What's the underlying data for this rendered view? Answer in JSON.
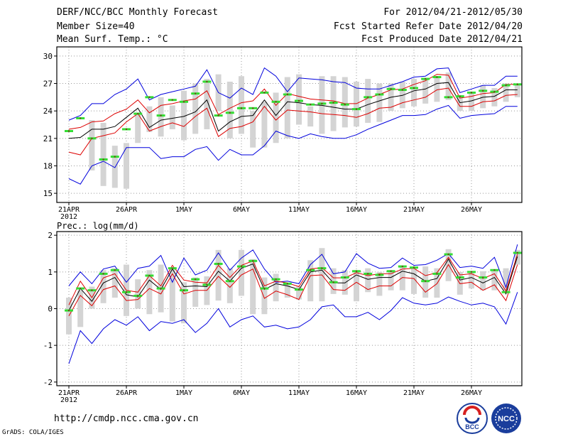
{
  "header": {
    "title": "DERF/NCC/BCC Monthly Forecast",
    "member_size": "Member Size=40",
    "variable": "Mean Surf. Temp.: °C",
    "period": "For 2012/04/21-2012/05/30",
    "refer_date": "Fcst Started Refer Date 2012/04/20",
    "produced_date": "Fcst Produced Date 2012/04/21"
  },
  "footer": {
    "url": "http://cmdp.ncc.cma.gov.cn",
    "credit": "GrADS: COLA/IGES",
    "logo_bcc_text": "BCC",
    "logo_ncc_text": "NCC"
  },
  "colors": {
    "max_min": "#0000dd",
    "percentile": "#dd0000",
    "mean": "#000000",
    "box": "#d4d4d4",
    "obs": "#33dd33"
  },
  "chart_data": [
    {
      "type": "line",
      "title": "Mean Surf. Temp.: °C",
      "ylim": [
        14,
        31
      ],
      "yticks": [
        15,
        18,
        21,
        24,
        27,
        30
      ],
      "ytick_labels": [
        "15",
        "18",
        "21",
        "24",
        "27",
        "30"
      ],
      "xticks": [
        0,
        5,
        10,
        15,
        20,
        25,
        30,
        35
      ],
      "xtick_labels": [
        "21APR",
        "26APR",
        "1MAY",
        "6MAY",
        "11MAY",
        "16MAY",
        "21MAY",
        "26MAY"
      ],
      "year_label": "2012",
      "days": 40,
      "series": [
        {
          "name": "max",
          "values": [
            23,
            23.5,
            24.8,
            24.8,
            25.8,
            26.4,
            27.5,
            25.2,
            25.8,
            26.1,
            26.4,
            26.7,
            28.5,
            26,
            25.4,
            26.5,
            25.8,
            28.7,
            27.8,
            26.1,
            27.6,
            27.5,
            27.4,
            27.2,
            27.1,
            26.5,
            26.4,
            26.4,
            26.8,
            27.2,
            27.7,
            27.8,
            28.6,
            28.7,
            26,
            26.4,
            26.8,
            26.8,
            27.8,
            27.8
          ]
        },
        {
          "name": "p90",
          "values": [
            22,
            22.2,
            22.8,
            22.9,
            23.7,
            24.2,
            25.2,
            23.8,
            24.6,
            24.8,
            25.1,
            25.3,
            26.2,
            23.6,
            24.3,
            24.9,
            25.1,
            26.4,
            24.6,
            25.9,
            25.6,
            25.3,
            25.2,
            25.1,
            24.8,
            24.8,
            25.4,
            25.8,
            26.3,
            26.4,
            26.9,
            27.3,
            28,
            27.9,
            25.4,
            25.6,
            25.9,
            26,
            26.9,
            26.9
          ]
        },
        {
          "name": "mean",
          "values": [
            21,
            21.1,
            22,
            22,
            22.3,
            23.3,
            24.3,
            22.2,
            23,
            23.2,
            23.4,
            23.9,
            25.2,
            21.8,
            22.8,
            23.4,
            23.5,
            25.2,
            23.5,
            25,
            24.9,
            24.7,
            24.6,
            24.4,
            24.2,
            24.2,
            24.7,
            25.1,
            25.5,
            25.7,
            26.2,
            26.4,
            27,
            27.1,
            24.9,
            25.1,
            25.5,
            25.6,
            26.3,
            26.3
          ]
        },
        {
          "name": "p10",
          "values": [
            19.5,
            19.2,
            21,
            21.3,
            21.6,
            22.8,
            23.7,
            21.8,
            22.3,
            22.7,
            22.3,
            23.4,
            24.3,
            21.2,
            22.1,
            22.3,
            22.8,
            24.5,
            23,
            24.1,
            24,
            23.9,
            23.7,
            23.6,
            23.5,
            23.3,
            23.7,
            24.3,
            24.4,
            24.9,
            25.2,
            25.5,
            26.3,
            26.5,
            24.5,
            24.5,
            25,
            25.1,
            25.7,
            25.8
          ]
        },
        {
          "name": "min",
          "values": [
            16.6,
            16,
            18,
            18.5,
            17.8,
            20,
            20,
            20,
            18.8,
            19,
            19,
            19.8,
            20.1,
            18.6,
            19.8,
            19.2,
            19.2,
            20.2,
            21.8,
            21.3,
            21,
            21.5,
            21.2,
            21,
            21,
            21.4,
            22,
            22.5,
            23,
            23.5,
            23.5,
            23.6,
            24.2,
            24.6,
            23.2,
            23.5,
            23.6,
            23.7,
            24.5,
            24.5
          ]
        }
      ],
      "boxes": [
        [
          null,
          null
        ],
        [
          null,
          null
        ],
        [
          17.5,
          23
        ],
        [
          15.8,
          22.7
        ],
        [
          15.6,
          20.2
        ],
        [
          15.5,
          20.5
        ],
        [
          20.5,
          23.8
        ],
        [
          21.7,
          24.5
        ],
        [
          21.2,
          25.5
        ],
        [
          22,
          24.6
        ],
        [
          20.8,
          26.2
        ],
        [
          21.5,
          27
        ],
        [
          22,
          27.5
        ],
        [
          24,
          28
        ],
        [
          21,
          27.2
        ],
        [
          21.5,
          27.8
        ],
        [
          20,
          24
        ],
        [
          20,
          25
        ],
        [
          20.5,
          26
        ],
        [
          21,
          27.7
        ],
        [
          22.5,
          28
        ],
        [
          22.3,
          24.5
        ],
        [
          21.5,
          27.8
        ],
        [
          21.8,
          27.8
        ],
        [
          22.2,
          27.7
        ],
        [
          22.3,
          27.2
        ],
        [
          22.7,
          27.5
        ],
        [
          22.8,
          27
        ],
        [
          24,
          27
        ],
        [
          24.3,
          27.2
        ],
        [
          24.5,
          27.5
        ],
        [
          24.8,
          27.5
        ],
        [
          25,
          27.7
        ],
        [
          25.2,
          28.2
        ],
        [
          24,
          25.6
        ],
        [
          24,
          26
        ],
        [
          24.3,
          26.8
        ],
        [
          24.5,
          26.5
        ],
        [
          25,
          27
        ],
        [
          25.5,
          27
        ]
      ],
      "obs": [
        21.8,
        23.2,
        21,
        18.7,
        19,
        22,
        23.7,
        25.5,
        23.5,
        25.2,
        25,
        25.9,
        27.2,
        23.5,
        23.8,
        24.3,
        24.3,
        26,
        25,
        25.8,
        25.1,
        24.7,
        24.8,
        24.9,
        24.7,
        24.2,
        25.5,
        25.8,
        26.4,
        26.3,
        26.5,
        27.5,
        27.7,
        25.5,
        25.6,
        26,
        26.2,
        26.1,
        26.8,
        26.9
      ]
    },
    {
      "type": "line",
      "title": "Prec.: log(mm/d)",
      "ylim": [
        -2.1,
        2.1
      ],
      "yticks": [
        -2,
        -1,
        0,
        1,
        2
      ],
      "ytick_labels": [
        "-2",
        "-1",
        "0",
        "1",
        "2"
      ],
      "xticks": [
        0,
        5,
        10,
        15,
        20,
        25,
        30,
        35
      ],
      "xtick_labels": [
        "21APR",
        "26APR",
        "1MAY",
        "6MAY",
        "11MAY",
        "16MAY",
        "21MAY",
        "26MAY"
      ],
      "year_label": "2012",
      "days": 40,
      "series": [
        {
          "name": "max",
          "values": [
            0.62,
            1,
            0.68,
            1.08,
            1.16,
            0.72,
            1.1,
            1.16,
            1.45,
            0.72,
            1.38,
            0.92,
            1.05,
            1.52,
            1.05,
            1.38,
            1.6,
            1.08,
            0.72,
            0.75,
            0.68,
            1.2,
            1.48,
            0.95,
            1,
            1.5,
            1.24,
            1.1,
            1.12,
            1.38,
            1.18,
            1.2,
            1.32,
            1.5,
            1.12,
            1.16,
            1.1,
            1.4,
            0.58,
            1.75
          ]
        },
        {
          "name": "p90",
          "values": [
            0.1,
            0.75,
            0.3,
            0.84,
            0.95,
            0.5,
            0.45,
            0.9,
            0.62,
            1.18,
            0.78,
            0.72,
            0.7,
            1.18,
            0.85,
            1.18,
            1.3,
            0.62,
            0.75,
            0.7,
            0.6,
            1.08,
            1.12,
            0.84,
            0.84,
            0.98,
            0.9,
            0.95,
            0.95,
            1.08,
            1.1,
            0.9,
            0.98,
            1.4,
            0.92,
            0.95,
            0.82,
            0.95,
            0.48,
            1.48
          ]
        },
        {
          "name": "mean",
          "values": [
            -0.05,
            0.55,
            0.2,
            0.7,
            0.85,
            0.38,
            0.32,
            0.78,
            0.52,
            1.08,
            0.6,
            0.62,
            0.6,
            1.02,
            0.75,
            1.1,
            1.22,
            0.52,
            0.68,
            0.62,
            0.52,
            1,
            1.05,
            0.7,
            0.7,
            0.92,
            0.8,
            0.85,
            0.85,
            1.02,
            0.95,
            0.75,
            0.82,
            1.35,
            0.78,
            0.85,
            0.7,
            0.85,
            0.4,
            1.42
          ]
        },
        {
          "name": "p10",
          "values": [
            -0.2,
            0.36,
            0.08,
            0.52,
            0.62,
            0.22,
            0.25,
            0.55,
            0.4,
            0.95,
            0.4,
            0.5,
            0.5,
            0.88,
            0.58,
            0.92,
            1.08,
            0.28,
            0.48,
            0.38,
            0.25,
            0.9,
            0.92,
            0.52,
            0.5,
            0.72,
            0.52,
            0.62,
            0.62,
            0.85,
            0.82,
            0.45,
            0.68,
            1.2,
            0.68,
            0.72,
            0.5,
            0.65,
            0.22,
            1.2
          ]
        },
        {
          "name": "min",
          "values": [
            -1.5,
            -0.6,
            -0.95,
            -0.55,
            -0.3,
            -0.45,
            -0.22,
            -0.6,
            -0.35,
            -0.4,
            -0.3,
            -0.65,
            -0.4,
            0,
            -0.5,
            -0.3,
            -0.2,
            -0.5,
            -0.45,
            -0.55,
            -0.5,
            -0.3,
            0.05,
            0.1,
            -0.22,
            -0.22,
            -0.1,
            -0.3,
            -0.05,
            0.3,
            0.15,
            0.1,
            0.15,
            0.32,
            0.2,
            0.1,
            0.15,
            0.05,
            -0.42,
            0.45
          ]
        }
      ],
      "boxes": [
        [
          -0.7,
          0.3
        ],
        [
          -0.5,
          0.5
        ],
        [
          0,
          0.6
        ],
        [
          0.15,
          1.05
        ],
        [
          0.3,
          1.1
        ],
        [
          -0.2,
          1.2
        ],
        [
          0,
          0.8
        ],
        [
          -0.15,
          1.05
        ],
        [
          -0.1,
          1.2
        ],
        [
          -0.35,
          1.1
        ],
        [
          -0.4,
          0.72
        ],
        [
          0.05,
          0.85
        ],
        [
          0.1,
          0.88
        ],
        [
          0.22,
          1.6
        ],
        [
          0.15,
          1.1
        ],
        [
          0.35,
          1.6
        ],
        [
          -0.15,
          1.35
        ],
        [
          -0.15,
          0.85
        ],
        [
          0.2,
          0.95
        ],
        [
          0.3,
          0.7
        ],
        [
          0.25,
          0.6
        ],
        [
          0.2,
          1.32
        ],
        [
          0.2,
          1.65
        ],
        [
          0.4,
          1.1
        ],
        [
          0.38,
          1.05
        ],
        [
          0.2,
          1.05
        ],
        [
          0.45,
          1.1
        ],
        [
          0.35,
          1
        ],
        [
          0.5,
          1.05
        ],
        [
          0.5,
          1.15
        ],
        [
          0.4,
          1.1
        ],
        [
          0.3,
          1.15
        ],
        [
          0.3,
          1.1
        ],
        [
          0.75,
          1.62
        ],
        [
          0.38,
          1
        ],
        [
          0.55,
          1.02
        ],
        [
          0.5,
          1.02
        ],
        [
          0.5,
          1.02
        ],
        [
          0.5,
          1.1
        ],
        [
          1.2,
          1.6
        ]
      ],
      "obs": [
        -0.05,
        0.55,
        0.5,
        0.95,
        1.05,
        0.45,
        0.35,
        0.9,
        0.55,
        1.1,
        0.5,
        0.8,
        0.65,
        1.22,
        0.75,
        1.15,
        1.3,
        0.55,
        0.8,
        0.68,
        0.52,
        1.05,
        1.1,
        0.72,
        0.85,
        1.02,
        0.95,
        0.92,
        1.02,
        1.15,
        1.12,
        0.75,
        0.95,
        1.48,
        0.85,
        1,
        0.85,
        1.05,
        0.45,
        1.52
      ]
    }
  ]
}
